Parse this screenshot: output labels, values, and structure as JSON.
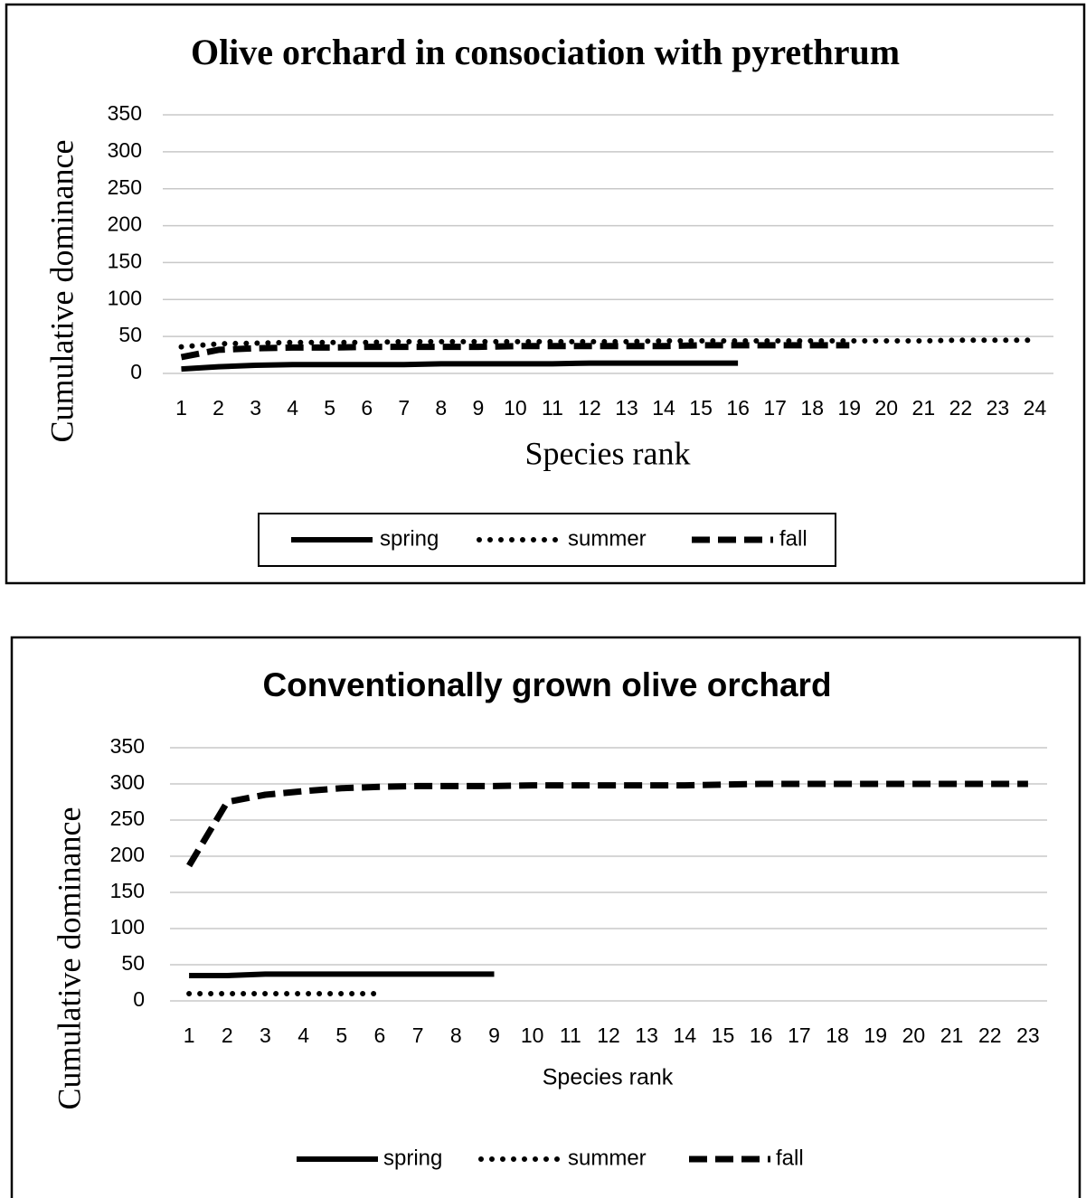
{
  "chart_data": [
    {
      "type": "line",
      "title": "Olive orchard in consociation with pyrethrum",
      "x_label": "Species rank",
      "y_label": "Cumulative dominance",
      "categories": [
        1,
        2,
        3,
        4,
        5,
        6,
        7,
        8,
        9,
        10,
        11,
        12,
        13,
        14,
        15,
        16,
        17,
        18,
        19,
        20,
        21,
        22,
        23,
        24
      ],
      "ylim": [
        0,
        350
      ],
      "yticks": [
        0,
        50,
        100,
        150,
        200,
        250,
        300,
        350
      ],
      "grid": true,
      "legend": "bottom",
      "series": [
        {
          "name": "spring",
          "color": "#000000",
          "line_style": "solid",
          "values": [
            6,
            9,
            11,
            12,
            12,
            12,
            12,
            13,
            13,
            13,
            13,
            14,
            14,
            14,
            14,
            14,
            null,
            null,
            null,
            null,
            null,
            null,
            null,
            null
          ]
        },
        {
          "name": "summer",
          "color": "#000000",
          "line_style": "dotted",
          "values": [
            36,
            40,
            41,
            42,
            42,
            42,
            43,
            43,
            43,
            43,
            43,
            43,
            43,
            44,
            44,
            44,
            44,
            44,
            44,
            44,
            44,
            45,
            45,
            45
          ]
        },
        {
          "name": "fall",
          "color": "#000000",
          "line_style": "dashed",
          "values": [
            22,
            32,
            34,
            35,
            35,
            36,
            36,
            36,
            36,
            37,
            37,
            37,
            37,
            37,
            38,
            38,
            38,
            38,
            38,
            null,
            null,
            null,
            null,
            null
          ]
        }
      ]
    },
    {
      "type": "line",
      "title": "Conventionally grown olive orchard",
      "x_label": "Species rank",
      "y_label": "Cumulative dominance",
      "categories": [
        1,
        2,
        3,
        4,
        5,
        6,
        7,
        8,
        9,
        10,
        11,
        12,
        13,
        14,
        15,
        16,
        17,
        18,
        19,
        20,
        21,
        22,
        23
      ],
      "ylim": [
        0,
        350
      ],
      "yticks": [
        0,
        50,
        100,
        150,
        200,
        250,
        300,
        350
      ],
      "grid": true,
      "legend": "bottom",
      "series": [
        {
          "name": "spring",
          "color": "#000000",
          "line_style": "solid",
          "values": [
            35,
            35,
            37,
            37,
            37,
            37,
            37,
            37,
            37,
            null,
            null,
            null,
            null,
            null,
            null,
            null,
            null,
            null,
            null,
            null,
            null,
            null,
            null
          ]
        },
        {
          "name": "summer",
          "color": "#000000",
          "line_style": "dotted",
          "values": [
            10,
            10,
            10,
            10,
            10,
            10,
            null,
            null,
            null,
            null,
            null,
            null,
            null,
            null,
            null,
            null,
            null,
            null,
            null,
            null,
            null,
            null,
            null
          ]
        },
        {
          "name": "fall",
          "color": "#000000",
          "line_style": "dashed",
          "values": [
            187,
            275,
            285,
            290,
            294,
            296,
            297,
            297,
            297,
            298,
            298,
            298,
            298,
            298,
            299,
            300,
            300,
            300,
            300,
            300,
            300,
            300,
            300
          ]
        }
      ]
    }
  ]
}
